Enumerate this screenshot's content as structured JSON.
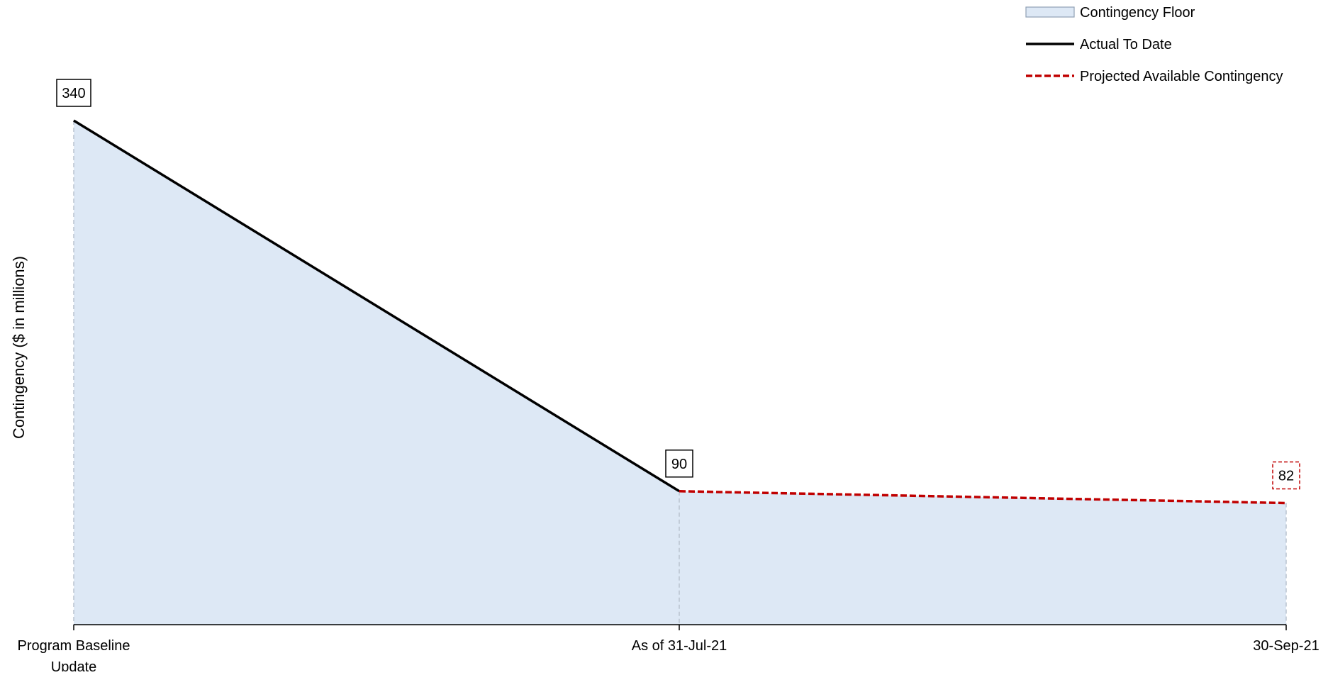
{
  "chart_data": {
    "type": "area",
    "categories": [
      "Program Baseline Update",
      "As of 31-Jul-21",
      "30-Sep-21"
    ],
    "category_lines": [
      [
        "Program Baseline",
        "Update"
      ],
      [
        "As of 31-Jul-21"
      ],
      [
        "30-Sep-21"
      ]
    ],
    "ylabel": "Contingency ($ in millions)",
    "xlabel": "",
    "ylim": [
      0,
      360
    ],
    "grid": false,
    "legend_position": "top-right",
    "series": [
      {
        "name": "Contingency Floor",
        "kind": "area",
        "values": [
          340,
          90,
          82
        ],
        "color": "#dde8f5"
      },
      {
        "name": "Actual To Date",
        "kind": "line-solid",
        "values": [
          340,
          90,
          null
        ],
        "color": "#000000"
      },
      {
        "name": "Projected Available Contingency",
        "kind": "line-dashed",
        "values": [
          null,
          90,
          82
        ],
        "color": "#c00000"
      }
    ],
    "data_labels": [
      {
        "category_index": 0,
        "value": 340,
        "text": "340",
        "border": "solid"
      },
      {
        "category_index": 1,
        "value": 90,
        "text": "90",
        "border": "solid"
      },
      {
        "category_index": 2,
        "value": 82,
        "text": "82",
        "border": "dashed-red"
      }
    ]
  }
}
